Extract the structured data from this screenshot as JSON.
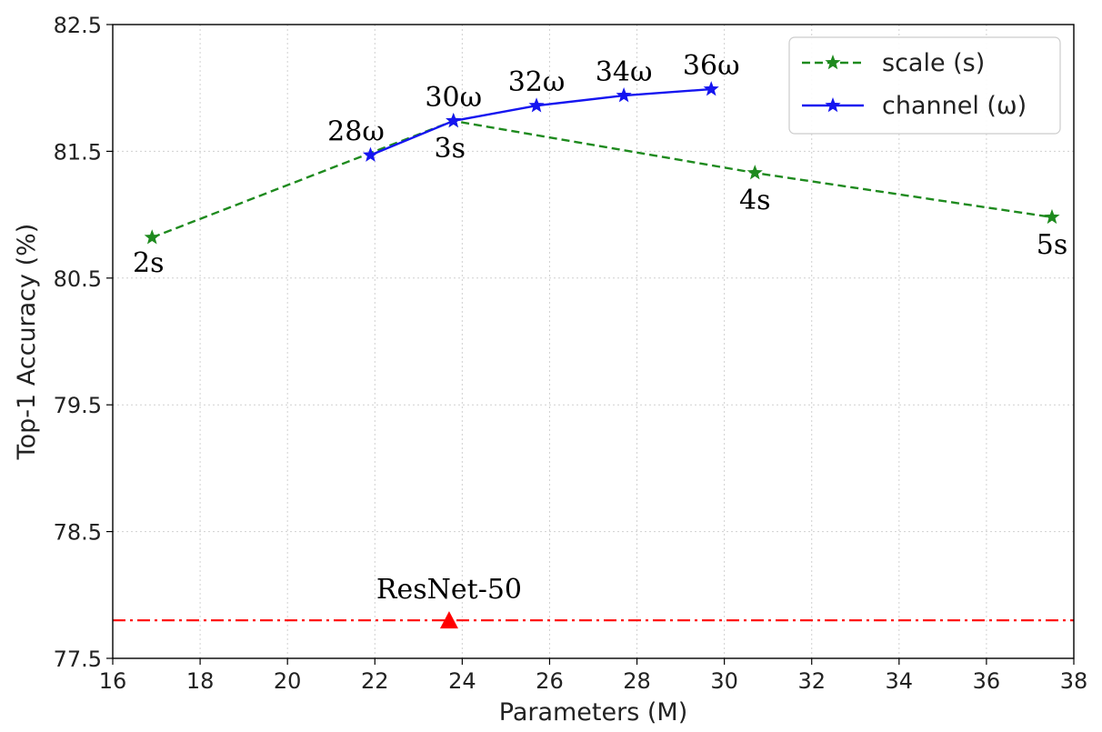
{
  "chart_data": {
    "type": "line",
    "xlabel": "Parameters (M)",
    "ylabel": "Top-1 Accuracy (%)",
    "xlim": [
      16,
      38
    ],
    "ylim": [
      77.5,
      82.5
    ],
    "xticks": [
      16,
      18,
      20,
      22,
      24,
      26,
      28,
      30,
      32,
      34,
      36,
      38
    ],
    "yticks": [
      77.5,
      78.5,
      79.5,
      80.5,
      81.5,
      82.5
    ],
    "ytick_labels": [
      "77.5",
      "78.5",
      "79.5",
      "80.5",
      "81.5",
      "82.5"
    ],
    "grid": true,
    "legend_position": "top-right",
    "series": [
      {
        "name": "scale (s)",
        "color": "#1e8a1e",
        "line_style": "dashed",
        "marker": "star",
        "points": [
          {
            "x": 16.9,
            "y": 80.82,
            "label": "2s"
          },
          {
            "x": 23.8,
            "y": 81.74,
            "label": "3s"
          },
          {
            "x": 30.7,
            "y": 81.33,
            "label": "4s"
          },
          {
            "x": 37.5,
            "y": 80.98,
            "label": "5s"
          }
        ]
      },
      {
        "name": "channel (ω)",
        "color": "#1515f0",
        "line_style": "solid",
        "marker": "star",
        "points": [
          {
            "x": 21.9,
            "y": 81.47,
            "label": "28ω"
          },
          {
            "x": 23.8,
            "y": 81.74,
            "label": "30ω"
          },
          {
            "x": 25.7,
            "y": 81.86,
            "label": "32ω"
          },
          {
            "x": 27.7,
            "y": 81.94,
            "label": "34ω"
          },
          {
            "x": 29.7,
            "y": 81.99,
            "label": "36ω"
          }
        ]
      }
    ],
    "baseline": {
      "label": "ResNet-50",
      "x": 23.7,
      "y": 77.8,
      "color": "#ff0000",
      "line_style": "dashdot",
      "marker": "triangle"
    }
  }
}
